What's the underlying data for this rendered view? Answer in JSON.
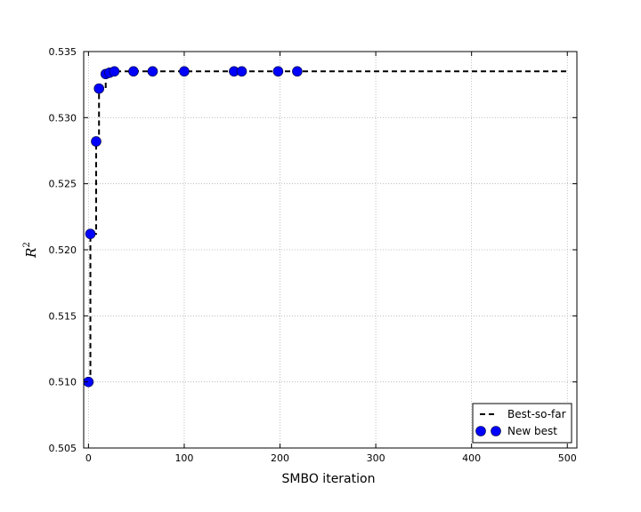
{
  "chart_data": {
    "type": "line",
    "title": "",
    "xlabel": "SMBO iteration",
    "ylabel": "R",
    "ylabel_superscript": "2",
    "xlim": [
      -5,
      510
    ],
    "ylim": [
      0.505,
      0.535
    ],
    "xticks": [
      0,
      100,
      200,
      300,
      400,
      500
    ],
    "xtick_labels": [
      "0",
      "100",
      "200",
      "300",
      "400",
      "500"
    ],
    "yticks": [
      0.505,
      0.51,
      0.515,
      0.52,
      0.525,
      0.53,
      0.535
    ],
    "ytick_labels": [
      "0.505",
      "0.510",
      "0.515",
      "0.520",
      "0.525",
      "0.530",
      "0.535"
    ],
    "grid": true,
    "legend_position": "bottom-right",
    "series": [
      {
        "name": "Best-so-far",
        "style": "dashed",
        "color": "#000000",
        "x": [
          0,
          2,
          2,
          8,
          8,
          11,
          11,
          18,
          18,
          22,
          22,
          27,
          27,
          47,
          47,
          67,
          67,
          100,
          100,
          152,
          152,
          160,
          160,
          198,
          198,
          218,
          218,
          500
        ],
        "y": [
          0.51,
          0.51,
          0.5212,
          0.5212,
          0.5282,
          0.5282,
          0.5322,
          0.5322,
          0.5333,
          0.5333,
          0.5334,
          0.5334,
          0.5335,
          0.5335,
          0.5335,
          0.5335,
          0.5335,
          0.5335,
          0.5335,
          0.5335,
          0.5335,
          0.5335,
          0.5335,
          0.5335,
          0.5335,
          0.5335,
          0.5335,
          0.5335
        ]
      },
      {
        "name": "New best",
        "style": "markers",
        "color": "#0000ff",
        "x": [
          0,
          2,
          8,
          11,
          18,
          22,
          27,
          47,
          67,
          100,
          152,
          160,
          198,
          218
        ],
        "y": [
          0.51,
          0.5212,
          0.5282,
          0.5322,
          0.5333,
          0.5334,
          0.5335,
          0.5335,
          0.5335,
          0.5335,
          0.5335,
          0.5335,
          0.5335,
          0.5335
        ]
      }
    ]
  }
}
